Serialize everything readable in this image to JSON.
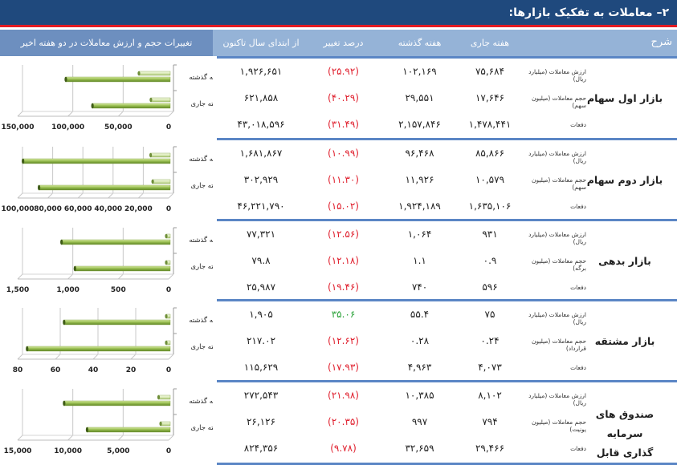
{
  "title": "۲– معاملات به تفکیک بازارها:",
  "header": {
    "sharh": "شرح",
    "current_week": "هفته جاری",
    "last_week": "هفته گذشته",
    "pct_change": "درصد تغییر",
    "ytd": "از ابتدای سال تاکنون",
    "chart_header": "تغییرات حجم و ارزش معاملات در دو هفته اخیر"
  },
  "colors": {
    "title_bg": "#1f497d",
    "title_rule": "#e31b23",
    "header_bg": "#95b3d7",
    "group_rule": "#5b86c5",
    "negative": "#e0202e",
    "positive": "#2ca33a",
    "bar_dark": "#8db543",
    "bar_light": "#d7e9b0"
  },
  "markets": [
    {
      "name": "بازار اول سهام",
      "rows": [
        {
          "metric": "ارزش معاملات (میلیارد ریال)",
          "current": "۷۵,۶۸۴",
          "previous": "۱۰۲,۱۶۹",
          "pct": "(۲۵.۹۲)",
          "pct_positive": false,
          "ytd": "۱,۹۲۶,۶۵۱"
        },
        {
          "metric": "حجم معاملات (میلیون سهم)",
          "current": "۱۷,۶۴۶",
          "previous": "۲۹,۵۵۱",
          "pct": "(۴۰.۲۹)",
          "pct_positive": false,
          "ytd": "۶۲۱,۸۵۸"
        },
        {
          "metric": "دفعات",
          "current": "۱,۴۷۸,۴۴۱",
          "previous": "۲,۱۵۷,۸۴۶",
          "pct": "(۳۱.۴۹)",
          "pct_positive": false,
          "ytd": "۴۳,۰۱۸,۵۹۶"
        }
      ]
    },
    {
      "name": "بازار دوم سهام",
      "rows": [
        {
          "metric": "ارزش معاملات (میلیارد ریال)",
          "current": "۸۵,۸۶۶",
          "previous": "۹۶,۴۶۸",
          "pct": "(۱۰.۹۹)",
          "pct_positive": false,
          "ytd": "۱,۶۸۱,۸۶۷"
        },
        {
          "metric": "حجم معاملات (میلیون سهم)",
          "current": "۱۰,۵۷۹",
          "previous": "۱۱,۹۲۶",
          "pct": "(۱۱.۳۰)",
          "pct_positive": false,
          "ytd": "۳۰۲,۹۲۹"
        },
        {
          "metric": "دفعات",
          "current": "۱,۶۳۵,۱۰۶",
          "previous": "۱,۹۲۴,۱۸۹",
          "pct": "(۱۵.۰۲)",
          "pct_positive": false,
          "ytd": "۴۶,۲۲۱,۷۹۰"
        }
      ]
    },
    {
      "name": "بازار بدهی",
      "rows": [
        {
          "metric": "ارزش معاملات (میلیارد ریال)",
          "current": "۹۳۱",
          "previous": "۱,۰۶۴",
          "pct": "(۱۲.۵۶)",
          "pct_positive": false,
          "ytd": "۷۷,۳۲۱"
        },
        {
          "metric": "حجم معاملات (میلیون برگه)",
          "current": "۰.۹",
          "previous": "۱.۱",
          "pct": "(۱۲.۱۸)",
          "pct_positive": false,
          "ytd": "۷۹.۸"
        },
        {
          "metric": "دفعات",
          "current": "۵۹۶",
          "previous": "۷۴۰",
          "pct": "(۱۹.۴۶)",
          "pct_positive": false,
          "ytd": "۲۵,۹۸۷"
        }
      ]
    },
    {
      "name": "بازار مشتقه",
      "rows": [
        {
          "metric": "ارزش معاملات (میلیارد ریال)",
          "current": "۷۵",
          "previous": "۵۵.۴",
          "pct": "۳۵.۰۶",
          "pct_positive": true,
          "ytd": "۱,۹۰۵"
        },
        {
          "metric": "حجم معاملات (میلیون قرارداد)",
          "current": "۰.۲۴",
          "previous": "۰.۲۸",
          "pct": "(۱۲.۶۲)",
          "pct_positive": false,
          "ytd": "۲۱۷.۰۲"
        },
        {
          "metric": "دفعات",
          "current": "۴,۰۷۳",
          "previous": "۴,۹۶۳",
          "pct": "(۱۷.۹۳)",
          "pct_positive": false,
          "ytd": "۱۱۵,۶۲۹"
        }
      ]
    },
    {
      "name": "صندوق های سرمایه گذاری قابل معامله",
      "name_line1": "صندوق های سرمایه",
      "name_line2": "گذاری قابل معامله",
      "rows": [
        {
          "metric": "ارزش معاملات (میلیارد ریال)",
          "current": "۸,۱۰۲",
          "previous": "۱۰,۳۸۵",
          "pct": "(۲۱.۹۸)",
          "pct_positive": false,
          "ytd": "۲۷۲,۵۴۳"
        },
        {
          "metric": "حجم معاملات (میلیون یونیت)",
          "current": "۷۹۴",
          "previous": "۹۹۷",
          "pct": "(۲۰.۳۵)",
          "pct_positive": false,
          "ytd": "۲۶,۱۲۶"
        },
        {
          "metric": "دفعات",
          "current": "۲۹,۴۶۶",
          "previous": "۳۲,۶۵۹",
          "pct": "(۹.۷۸)",
          "pct_positive": false,
          "ytd": "۸۲۴,۳۵۶"
        }
      ]
    }
  ],
  "chart_data": [
    {
      "type": "bar",
      "orientation": "horizontal",
      "categories": [
        "هفته جاری",
        "هفته گذشته"
      ],
      "series": [
        {
          "name": "ارزش معاملات",
          "values": [
            75684,
            102169
          ]
        },
        {
          "name": "حجم معاملات",
          "values": [
            17646,
            29551
          ]
        }
      ],
      "xlim": [
        0,
        150000
      ],
      "ticks": [
        "150,000",
        "100,000",
        "50,000",
        "0"
      ],
      "tick_values": [
        150000,
        100000,
        50000,
        0
      ],
      "grid": true,
      "axis_reversed": true
    },
    {
      "type": "bar",
      "orientation": "horizontal",
      "categories": [
        "هفته جاری",
        "هفته گذشته"
      ],
      "series": [
        {
          "name": "ارزش معاملات",
          "values": [
            85866,
            96468
          ]
        },
        {
          "name": "حجم معاملات",
          "values": [
            10579,
            11926
          ]
        }
      ],
      "xlim": [
        0,
        100000
      ],
      "ticks": [
        "100,000",
        "80,000",
        "60,000",
        "40,000",
        "20,000",
        "0"
      ],
      "tick_values": [
        100000,
        80000,
        60000,
        40000,
        20000,
        0
      ],
      "grid": true,
      "axis_reversed": true
    },
    {
      "type": "bar",
      "orientation": "horizontal",
      "categories": [
        "هفته جاری",
        "هفته گذشته"
      ],
      "series": [
        {
          "name": "ارزش معاملات",
          "values": [
            931,
            1064
          ]
        },
        {
          "name": "حجم معاملات",
          "values": [
            0.9,
            1.1
          ]
        }
      ],
      "xlim": [
        0,
        1500
      ],
      "ticks": [
        "1,500",
        "1,000",
        "500",
        "0"
      ],
      "tick_values": [
        1500,
        1000,
        500,
        0
      ],
      "grid": true,
      "axis_reversed": true
    },
    {
      "type": "bar",
      "orientation": "horizontal",
      "categories": [
        "هفته جاری",
        "هفته گذشته"
      ],
      "series": [
        {
          "name": "ارزش معاملات",
          "values": [
            75,
            55.4
          ]
        },
        {
          "name": "حجم معاملات",
          "values": [
            0.24,
            0.28
          ]
        }
      ],
      "xlim": [
        0,
        80
      ],
      "ticks": [
        "80",
        "60",
        "40",
        "20",
        "0"
      ],
      "tick_values": [
        80,
        60,
        40,
        20,
        0
      ],
      "grid": true,
      "axis_reversed": true
    },
    {
      "type": "bar",
      "orientation": "horizontal",
      "categories": [
        "هفته جاری",
        "هفته گذشته"
      ],
      "series": [
        {
          "name": "ارزش معاملات",
          "values": [
            8102,
            10385
          ]
        },
        {
          "name": "حجم معاملات",
          "values": [
            794,
            997
          ]
        }
      ],
      "xlim": [
        0,
        15000
      ],
      "ticks": [
        "15,000",
        "10,000",
        "5,000",
        "0"
      ],
      "tick_values": [
        15000,
        10000,
        5000,
        0
      ],
      "grid": true,
      "axis_reversed": true
    }
  ]
}
